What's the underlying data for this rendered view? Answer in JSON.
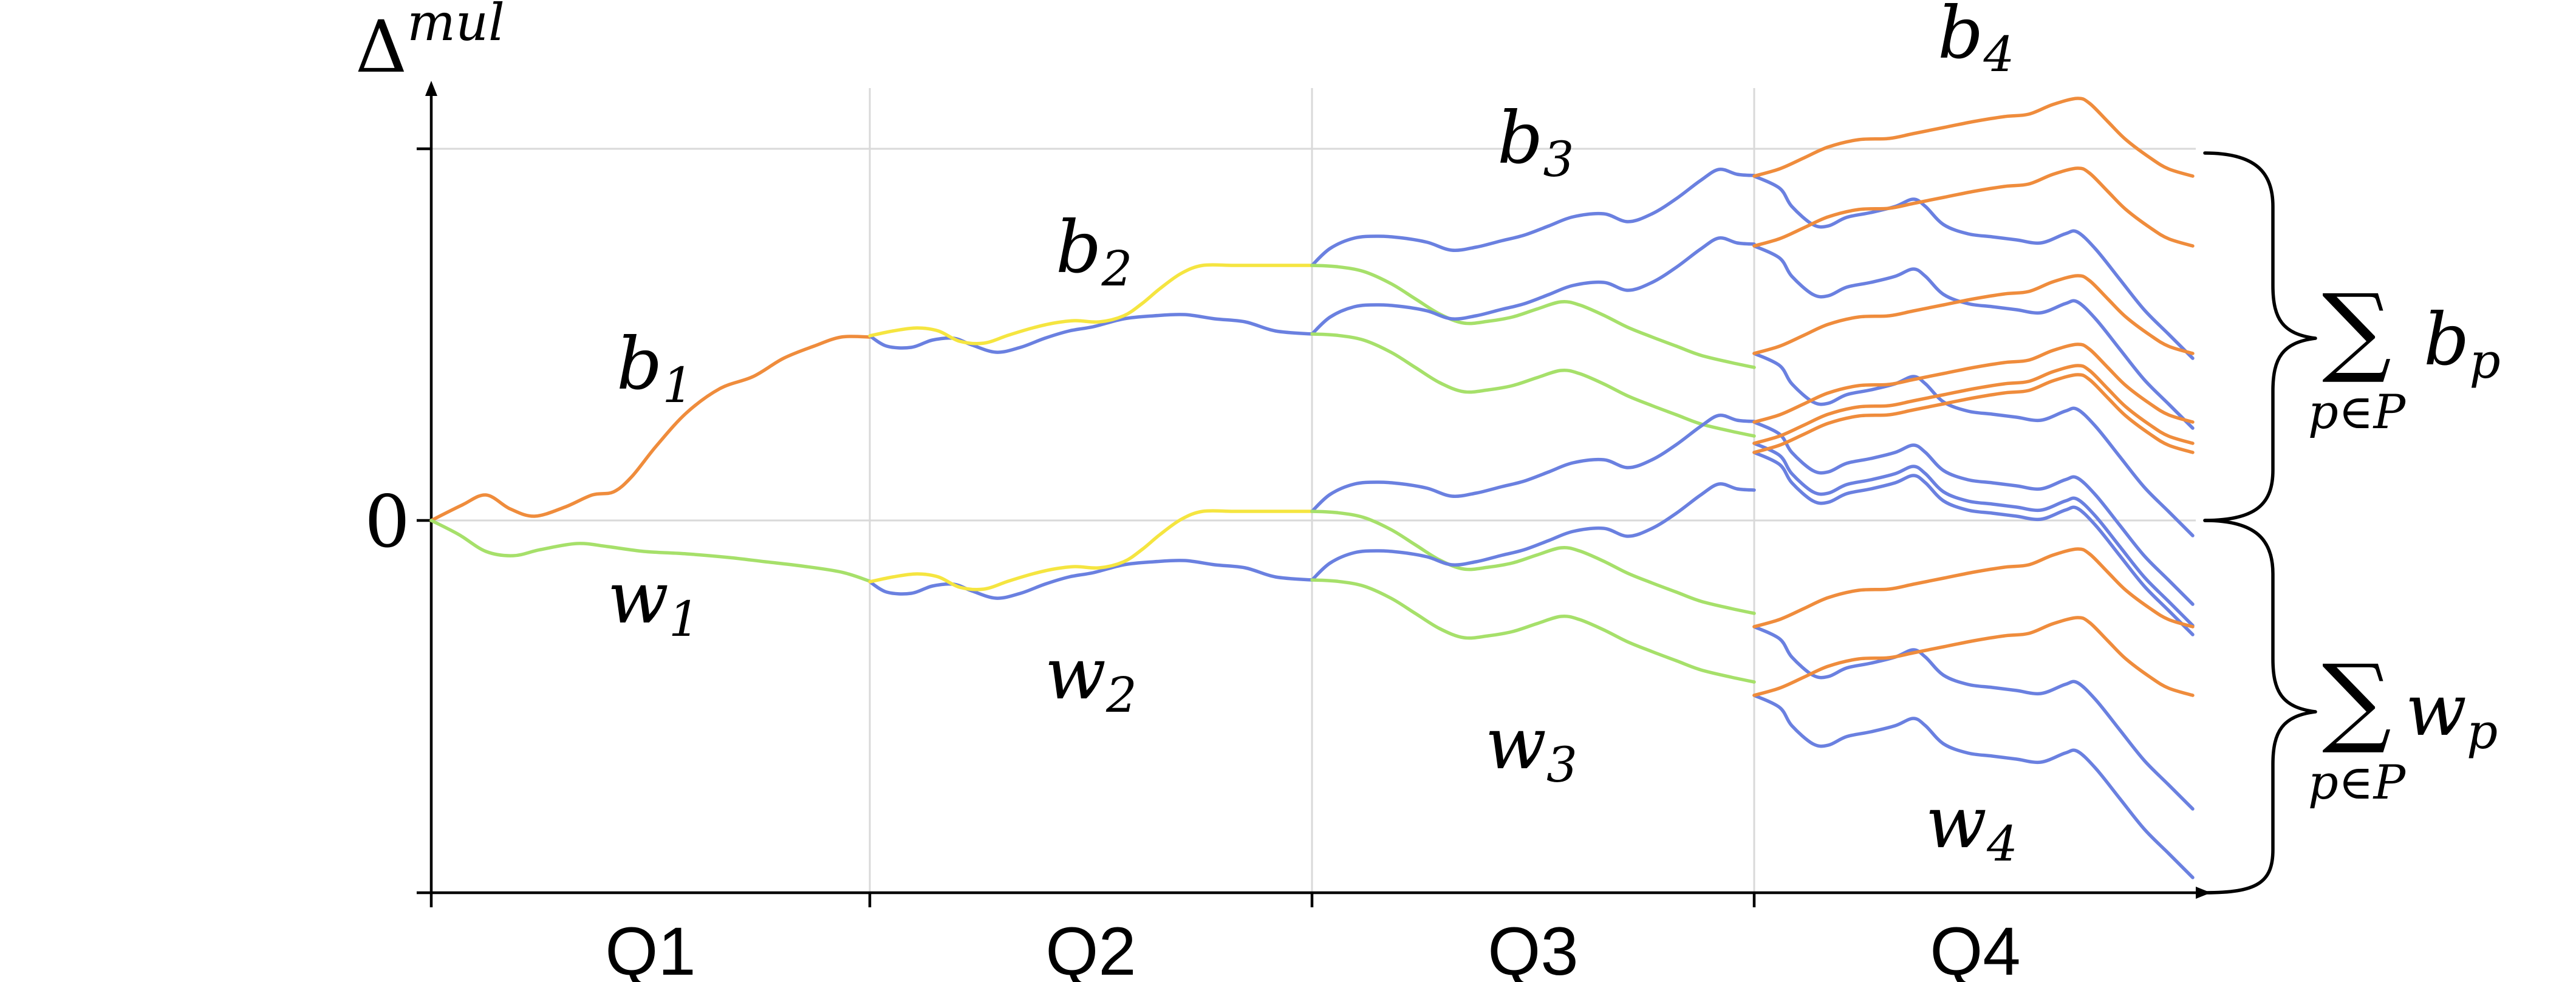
{
  "colors": {
    "b1": "#ef8c3c",
    "w1": "#a6e06a",
    "p2": "#f5e540",
    "blue": "#6a80e0",
    "orange": "#ef8c3c",
    "green": "#a6e06a"
  },
  "axis": {
    "y_symbol": "Δ",
    "y_superscript": "mul",
    "zero_label": "0",
    "quarters": [
      "Q1",
      "Q2",
      "Q3",
      "Q4"
    ]
  },
  "labels": {
    "b1": {
      "base": "b",
      "sub": "1"
    },
    "b2": {
      "base": "b",
      "sub": "2"
    },
    "b3": {
      "base": "b",
      "sub": "3"
    },
    "b4": {
      "base": "b",
      "sub": "4"
    },
    "w1": {
      "base": "w",
      "sub": "1"
    },
    "w2": {
      "base": "w",
      "sub": "2"
    },
    "w3": {
      "base": "w",
      "sub": "3"
    },
    "w4": {
      "base": "w",
      "sub": "4"
    }
  },
  "sums": {
    "top": {
      "symbol": "∑",
      "index": "p∈P",
      "term": "b",
      "term_sub": "p"
    },
    "bottom": {
      "symbol": "∑",
      "index": "p∈P",
      "term": "w",
      "term_sub": "p"
    }
  }
}
